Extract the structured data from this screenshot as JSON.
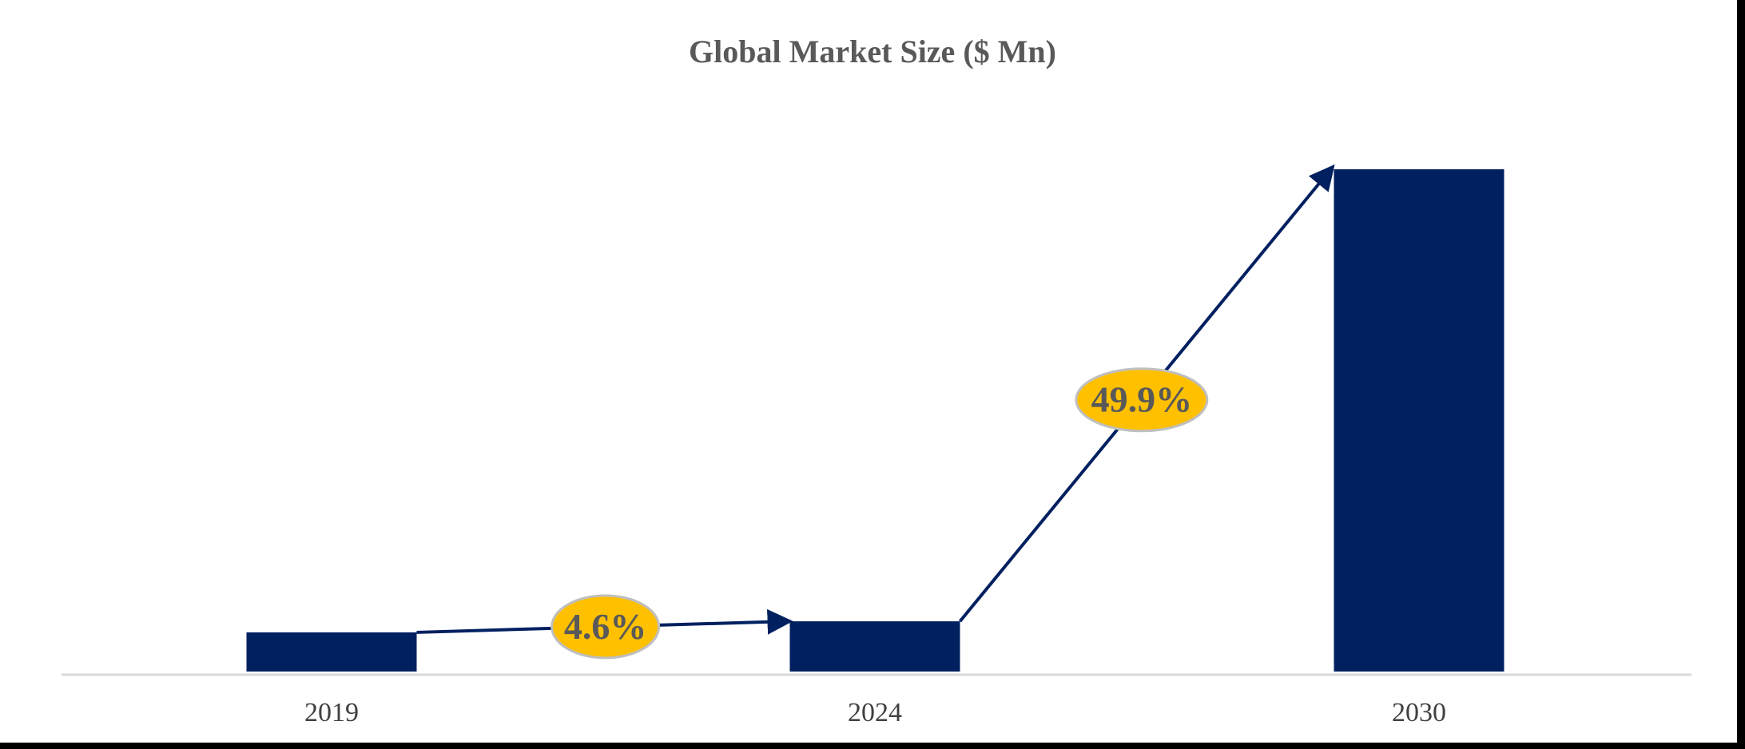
{
  "chart_data": {
    "type": "bar",
    "title": "Global Market Size ($ Mn)",
    "xlabel": "",
    "ylabel": "",
    "categories": [
      "2019",
      "2024",
      "2030"
    ],
    "values": [
      7.8,
      10.0,
      100
    ],
    "ylim": [
      0,
      100
    ],
    "y_axis_visible": false,
    "grid": false,
    "legend": "none",
    "annotations": [
      {
        "label": "4.6%",
        "from": "2019",
        "to": "2024"
      },
      {
        "label": "49.9%",
        "from": "2024",
        "to": "2030"
      }
    ],
    "colors": {
      "bar": "#002060",
      "arrow": "#002060",
      "badge": "#FFC000",
      "badge_border": "#BFBFBF",
      "axis": "#D9D9D9"
    }
  }
}
